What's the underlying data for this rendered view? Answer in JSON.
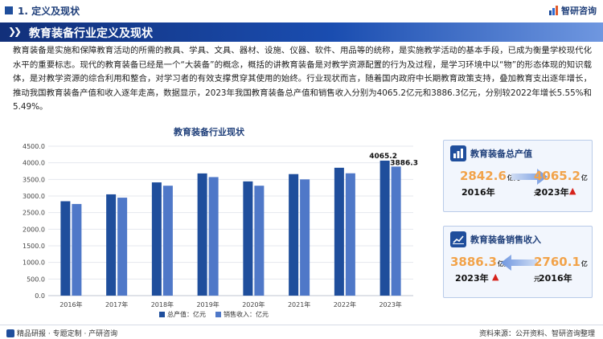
{
  "header": {
    "section_label": "1. 定义及现状",
    "brand_name": "智研咨询"
  },
  "banner": {
    "title": "教育装备行业定义及现状"
  },
  "intro_text": "教育装备是实施和保障教育活动的所需的教具、学具、文具、器材、设施、仪器、软件、用品等的统称，是实施教学活动的基本手段，已成为衡量学校现代化水平的重要标志。现代的教育装备已经是一个“大装备”的概念，概括的讲教育装备是对教学资源配置的行为及过程，是学习环境中以“物”的形态体现的知识载体，是对教学资源的综合利用和整合，对学习者的有效支撑贯穿其使用的始终。行业现状而言，随着国内政府中长期教育政策支持，叠加教育支出逐年增长，推动我国教育装备产值和收入逐年走高，数据显示，2023年我国教育装备总产值和销售收入分别为4065.2亿元和3886.3亿元，分别较2022年增长5.55%和5.49%。",
  "chart_data": {
    "type": "bar",
    "title": "教育装备行业现状",
    "categories": [
      "2016年",
      "2017年",
      "2018年",
      "2019年",
      "2020年",
      "2021年",
      "2022年",
      "2023年"
    ],
    "series": [
      {
        "name": "总产值：亿元",
        "color": "#1f4e9c",
        "values": [
          2842.6,
          3050,
          3410,
          3680,
          3440,
          3660,
          3851,
          4065.2
        ]
      },
      {
        "name": "销售收入：亿元",
        "color": "#4f78c8",
        "values": [
          2760.1,
          2950,
          3310,
          3570,
          3310,
          3500,
          3684,
          3886.3
        ]
      }
    ],
    "data_labels": [
      "4065.2",
      "3886.3"
    ],
    "y_ticks": [
      "0.0",
      "500.0",
      "1000.0",
      "1500.0",
      "2000.0",
      "2500.0",
      "3000.0",
      "3500.0",
      "4000.0",
      "4500.0"
    ],
    "ylim": [
      0,
      4500
    ],
    "grid": true,
    "legend_position": "bottom"
  },
  "card_output": {
    "title": "教育装备总产值",
    "from_value": "2842.6",
    "from_unit": "亿元",
    "from_year": "2016年",
    "to_value": "4065.2",
    "to_unit": "亿元",
    "to_year": "2023年",
    "from_color": "#f2a34a",
    "to_color": "#f2a34a"
  },
  "card_sales": {
    "title": "教育装备销售收入",
    "left_value": "3886.3",
    "left_unit": "亿元",
    "left_year": "2023年",
    "right_value": "2760.1",
    "right_unit": "亿元",
    "right_year": "2016年"
  },
  "footer": {
    "left_text": "精品研报 · 专题定制 · 产研咨询",
    "right_text": "资料来源：公开资料、智研咨询整理"
  }
}
